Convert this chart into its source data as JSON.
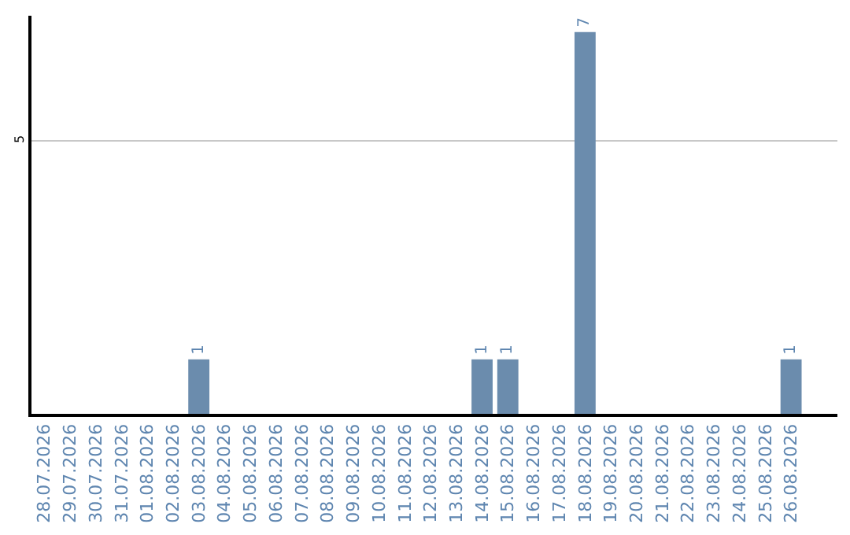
{
  "chart_data": {
    "type": "bar",
    "categories": [
      "28.07.2026",
      "29.07.2026",
      "30.07.2026",
      "31.07.2026",
      "01.08.2026",
      "02.08.2026",
      "03.08.2026",
      "04.08.2026",
      "05.08.2026",
      "06.08.2026",
      "07.08.2026",
      "08.08.2026",
      "09.08.2026",
      "10.08.2026",
      "11.08.2026",
      "12.08.2026",
      "13.08.2026",
      "14.08.2026",
      "15.08.2026",
      "16.08.2026",
      "17.08.2026",
      "18.08.2026",
      "19.08.2026",
      "20.08.2026",
      "21.08.2026",
      "22.08.2026",
      "23.08.2026",
      "24.08.2026",
      "25.08.2026",
      "26.08.2026"
    ],
    "values": [
      0,
      0,
      0,
      0,
      0,
      0,
      1,
      0,
      0,
      0,
      0,
      0,
      0,
      0,
      0,
      0,
      0,
      1,
      1,
      0,
      0,
      7,
      0,
      0,
      0,
      0,
      0,
      0,
      0,
      1
    ],
    "value_labels": [
      null,
      null,
      null,
      null,
      null,
      null,
      "1",
      null,
      null,
      null,
      null,
      null,
      null,
      null,
      null,
      null,
      null,
      "1",
      "1",
      null,
      null,
      "7",
      null,
      null,
      null,
      null,
      null,
      null,
      null,
      "1"
    ],
    "color": "#6b8cad",
    "ylim": [
      0,
      7.3
    ],
    "yticks": [
      0,
      5
    ],
    "grid": "y",
    "legend": false
  }
}
